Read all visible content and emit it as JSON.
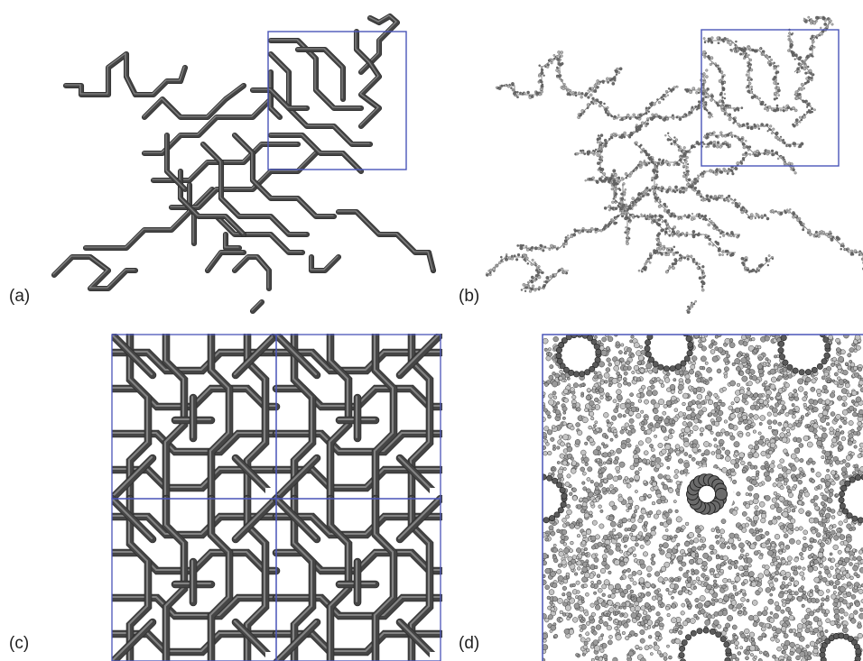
{
  "panels": {
    "a": {
      "label": "(a)"
    },
    "b": {
      "label": "(b)"
    },
    "c": {
      "label": "(c)"
    },
    "d": {
      "label": "(d)"
    }
  },
  "colors": {
    "box": "#4a55b8",
    "tube_dark": "#454545",
    "tube_light": "#b8b8b8",
    "atom_fill": "#9a9a9a",
    "atom_edge": "#3c3c3c",
    "background": "#ffffff"
  }
}
